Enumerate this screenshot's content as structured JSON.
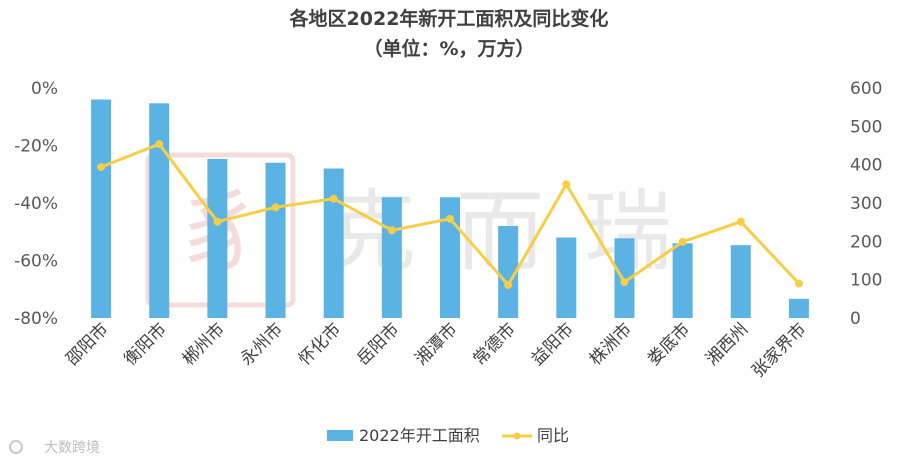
{
  "chart_data": {
    "type": "bar",
    "title": "各地区2022年新开工面积及同比变化",
    "subtitle": "（单位：%，万方）",
    "categories": [
      "邵阳市",
      "衡阳市",
      "郴州市",
      "永州市",
      "怀化市",
      "岳阳市",
      "湘潭市",
      "常德市",
      "益阳市",
      "株洲市",
      "娄底市",
      "湘西州",
      "张家界市"
    ],
    "series": [
      {
        "name": "2022年开工面积",
        "type": "bar",
        "axis": "right",
        "color": "#5BB3E3",
        "values": [
          570,
          560,
          415,
          405,
          390,
          315,
          315,
          240,
          210,
          208,
          195,
          190,
          50
        ]
      },
      {
        "name": "同比",
        "type": "line",
        "axis": "left",
        "color": "#F7CE46",
        "values": [
          -27.5,
          -19.5,
          -46.5,
          -41.5,
          -38.5,
          -49.5,
          -45.5,
          -68.5,
          -33.5,
          -67.5,
          -53.5,
          -46.5,
          -68.0
        ]
      }
    ],
    "y_left": {
      "min": -80,
      "max": 0,
      "step": 20,
      "tick_labels": [
        "0%",
        "-20%",
        "-40%",
        "-60%",
        "-80%"
      ]
    },
    "y_right": {
      "min": 0,
      "max": 600,
      "step": 100,
      "tick_labels": [
        "600",
        "500",
        "400",
        "300",
        "200",
        "100",
        "0"
      ]
    },
    "grid": false,
    "legend_position": "bottom"
  },
  "watermark": {
    "center_text": "克而瑞",
    "logo_lettering": "豸",
    "footer_text": "大数跨境"
  }
}
